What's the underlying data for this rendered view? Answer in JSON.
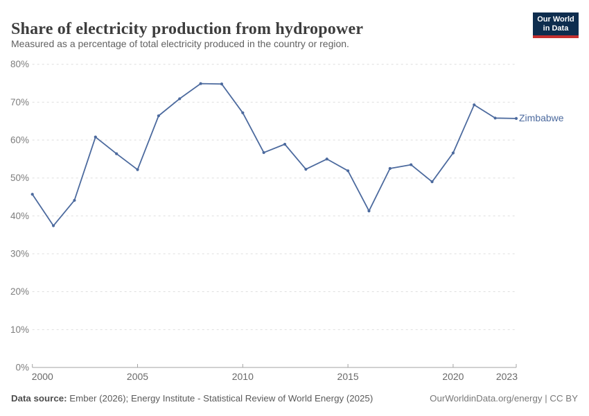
{
  "header": {
    "title": "Share of electricity production from hydropower",
    "subtitle": "Measured as a percentage of total electricity produced in the country or region."
  },
  "logo": {
    "line1": "Our World",
    "line2": "in Data",
    "bg_color": "#0e2d4e",
    "accent_color": "#c5302f"
  },
  "chart_data": {
    "type": "line",
    "title": "Share of electricity production from hydropower",
    "xlabel": "",
    "ylabel": "",
    "grid": true,
    "x_range": [
      2000,
      2023
    ],
    "ylim": [
      0,
      80
    ],
    "xticks": [
      2000,
      2005,
      2010,
      2015,
      2020,
      2023
    ],
    "yticks": [
      {
        "value": 0,
        "label": "0%"
      },
      {
        "value": 10,
        "label": "10%"
      },
      {
        "value": 20,
        "label": "20%"
      },
      {
        "value": 30,
        "label": "30%"
      },
      {
        "value": 40,
        "label": "40%"
      },
      {
        "value": 50,
        "label": "50%"
      },
      {
        "value": 60,
        "label": "60%"
      },
      {
        "value": 70,
        "label": "70%"
      },
      {
        "value": 80,
        "label": "80%"
      }
    ],
    "series": [
      {
        "name": "Zimbabwe",
        "x": [
          2000,
          2001,
          2002,
          2003,
          2004,
          2005,
          2006,
          2007,
          2008,
          2009,
          2010,
          2011,
          2012,
          2013,
          2014,
          2015,
          2016,
          2017,
          2018,
          2019,
          2020,
          2021,
          2022,
          2023
        ],
        "values": [
          45.7,
          37.4,
          44.1,
          60.8,
          56.4,
          52.2,
          66.4,
          70.9,
          74.9,
          74.8,
          67.2,
          56.7,
          58.9,
          52.3,
          55.0,
          51.9,
          41.3,
          52.5,
          53.5,
          49.0,
          56.6,
          69.3,
          65.8,
          65.7
        ]
      }
    ],
    "legend_position": "right-of-line-end",
    "colors": {
      "line": "#4c6a9e",
      "grid": "#dedede",
      "axis": "#a3a3a3",
      "ytick_text": "#7d7d7d",
      "xtick_text": "#696969"
    }
  },
  "footer": {
    "source_label": "Data source:",
    "source_text": " Ember (2026); Energy Institute - Statistical Review of World Energy (2025)",
    "right_text": "OurWorldinData.org/energy | CC BY"
  }
}
